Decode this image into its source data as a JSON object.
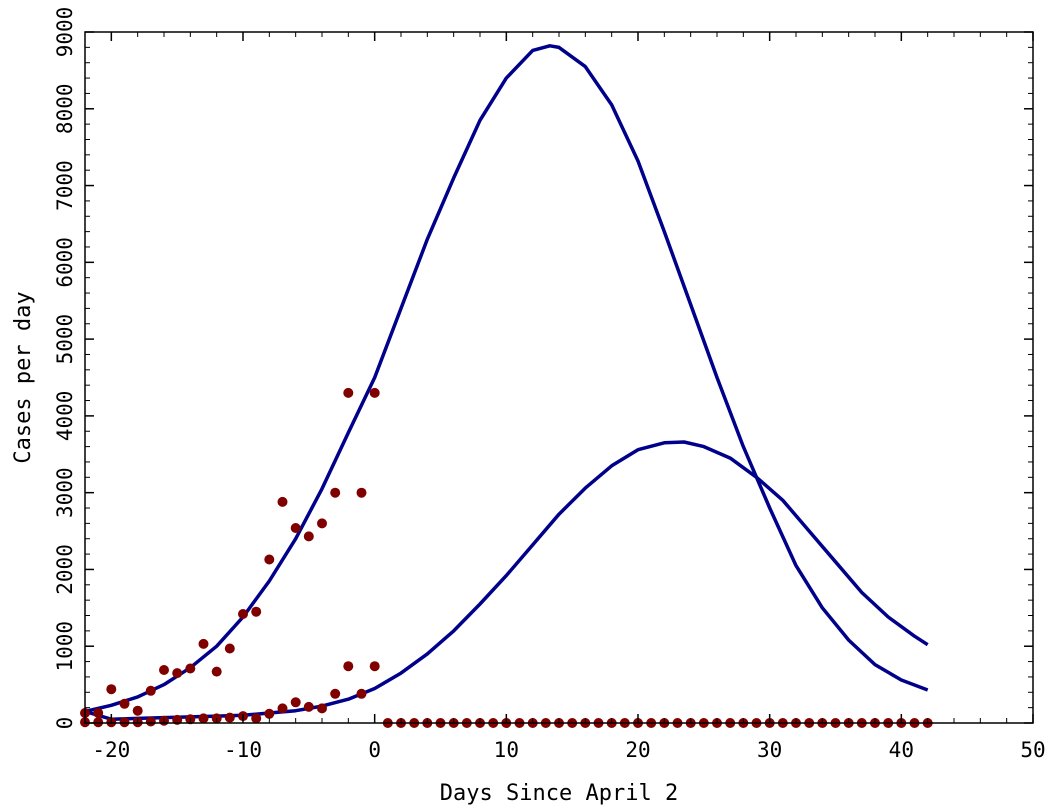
{
  "chart_data": {
    "type": "scatter",
    "title": "",
    "xlabel": "Days Since April 2",
    "ylabel": "Cases per day",
    "xlim": [
      -22,
      50
    ],
    "ylim": [
      0,
      9000
    ],
    "xticks": [
      -20,
      -10,
      0,
      10,
      20,
      30,
      40,
      50
    ],
    "yticks": [
      0,
      1000,
      2000,
      3000,
      4000,
      5000,
      6000,
      7000,
      8000,
      9000
    ],
    "grid": false,
    "legend": "none",
    "colors": {
      "points": "#800000",
      "curves": "#00008b"
    },
    "series": [
      {
        "kind": "scatter",
        "x": [
          -22,
          -21,
          -20,
          -19,
          -18,
          -17,
          -16,
          -15,
          -14,
          -13,
          -12,
          -11,
          -10,
          -9,
          -8,
          -7,
          -6,
          -5,
          -4,
          -3,
          -2,
          -1,
          0
        ],
        "y": [
          130,
          130,
          440,
          250,
          160,
          420,
          690,
          650,
          710,
          1030,
          670,
          970,
          1420,
          1450,
          2130,
          2880,
          2540,
          2430,
          2600,
          3000,
          4300,
          3000,
          4300
        ]
      },
      {
        "kind": "scatter",
        "x": [
          -22,
          -21,
          -20,
          -19,
          -18,
          -17,
          -16,
          -15,
          -14,
          -13,
          -12,
          -11,
          -10,
          -9,
          -8,
          -7,
          -6,
          -5,
          -4,
          -3,
          -2,
          -1,
          0
        ],
        "y": [
          10,
          10,
          10,
          10,
          10,
          20,
          30,
          40,
          50,
          60,
          60,
          70,
          90,
          60,
          120,
          190,
          270,
          210,
          190,
          380,
          740,
          380,
          740
        ]
      },
      {
        "kind": "scatter",
        "x": [
          1,
          2,
          3,
          4,
          5,
          6,
          7,
          8,
          9,
          10,
          11,
          12,
          13,
          14,
          15,
          16,
          17,
          18,
          19,
          20,
          21,
          22,
          23,
          24,
          25,
          26,
          27,
          28,
          29,
          30,
          31,
          32,
          33,
          34,
          35,
          36,
          37,
          38,
          39,
          40,
          41,
          42
        ],
        "y": [
          0,
          0,
          0,
          0,
          0,
          0,
          0,
          0,
          0,
          0,
          0,
          0,
          0,
          0,
          0,
          0,
          0,
          0,
          0,
          0,
          0,
          0,
          0,
          0,
          0,
          0,
          0,
          0,
          0,
          0,
          0,
          0,
          0,
          0,
          0,
          0,
          0,
          0,
          0,
          0,
          0,
          0
        ]
      },
      {
        "kind": "line",
        "x": [
          -22,
          -20,
          -18,
          -16,
          -14,
          -12,
          -10,
          -8,
          -6,
          -4,
          -2,
          0,
          2,
          4,
          6,
          8,
          10,
          12,
          13.3,
          14,
          16,
          18,
          20,
          22,
          24,
          26,
          28,
          30,
          32,
          34,
          36,
          38,
          40,
          42
        ],
        "y": [
          150,
          230,
          340,
          500,
          720,
          1000,
          1380,
          1850,
          2400,
          3050,
          3780,
          4500,
          5400,
          6300,
          7100,
          7850,
          8400,
          8760,
          8820,
          8800,
          8550,
          8050,
          7320,
          6400,
          5450,
          4500,
          3600,
          2800,
          2050,
          1500,
          1080,
          760,
          560,
          430
        ]
      },
      {
        "kind": "line",
        "x": [
          -22,
          -20,
          -18,
          -16,
          -14,
          -12,
          -10,
          -8,
          -6,
          -4,
          -2,
          0,
          2,
          4,
          6,
          8,
          10,
          12,
          14,
          16,
          18,
          20,
          22,
          23.5,
          25,
          27,
          29,
          31,
          33,
          35,
          37,
          39,
          41,
          42
        ],
        "y": [
          150,
          50,
          60,
          70,
          80,
          90,
          100,
          130,
          160,
          220,
          310,
          450,
          650,
          900,
          1200,
          1550,
          1920,
          2320,
          2720,
          3060,
          3350,
          3560,
          3650,
          3660,
          3600,
          3450,
          3200,
          2900,
          2500,
          2100,
          1700,
          1380,
          1130,
          1020
        ]
      }
    ]
  }
}
